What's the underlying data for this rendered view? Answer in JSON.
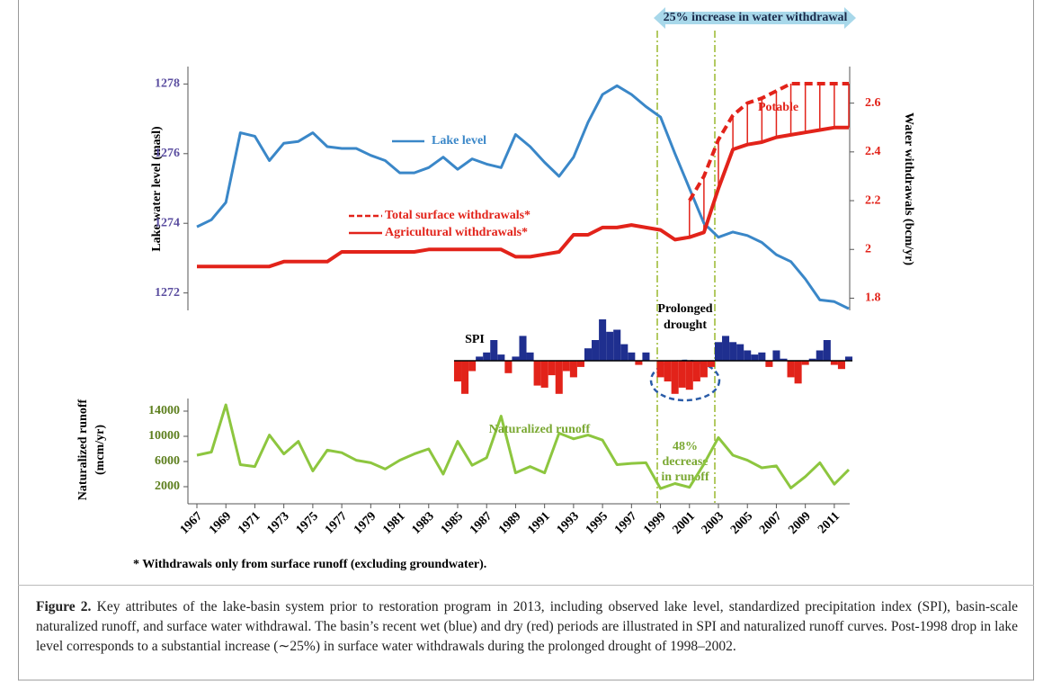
{
  "chart_data": [
    {
      "type": "line",
      "x": [
        1967,
        1968,
        1969,
        1970,
        1971,
        1972,
        1973,
        1974,
        1975,
        1976,
        1977,
        1978,
        1979,
        1980,
        1981,
        1982,
        1983,
        1984,
        1985,
        1986,
        1987,
        1988,
        1989,
        1990,
        1991,
        1992,
        1993,
        1994,
        1995,
        1996,
        1997,
        1998,
        1999,
        2000,
        2001,
        2002,
        2003,
        2004,
        2005,
        2006,
        2007,
        2008,
        2009,
        2010,
        2011,
        2012
      ],
      "xlim": [
        1967,
        2012
      ],
      "ylabel": "Lake water level (masl)",
      "y2label": "Water withdrawals (bcm/yr)",
      "ylim": [
        1271.5,
        1278.5
      ],
      "yticks": [
        1272,
        1274,
        1276,
        1278
      ],
      "ytick_color": "#5b4ea0",
      "y2lim": [
        1.75,
        2.75
      ],
      "y2ticks": [
        1.8,
        2,
        2.2,
        2.4,
        2.6
      ],
      "y2tick_color": "#e2231a",
      "series": [
        {
          "name": "Lake level",
          "color": "#3a87c8",
          "style": "solid",
          "axis": "y",
          "values": [
            1273.9,
            1274.1,
            1274.6,
            1276.6,
            1276.5,
            1275.8,
            1276.3,
            1276.35,
            1276.6,
            1276.2,
            1276.15,
            1276.15,
            1275.95,
            1275.8,
            1275.45,
            1275.45,
            1275.6,
            1275.9,
            1275.55,
            1275.85,
            1275.7,
            1275.6,
            1276.55,
            1276.2,
            1275.75,
            1275.35,
            1275.9,
            1276.9,
            1277.7,
            1277.95,
            1277.7,
            1277.35,
            1277.05,
            1276.0,
            1275.0,
            1274.0,
            1273.6,
            1273.75,
            1273.65,
            1273.45,
            1273.1,
            1272.9,
            1272.4,
            1271.8,
            1271.75,
            1271.55
          ]
        },
        {
          "name": "Total surface withdrawals*",
          "color": "#e2231a",
          "style": "dashed",
          "axis": "y2",
          "values": [
            null,
            null,
            null,
            null,
            null,
            null,
            null,
            null,
            null,
            null,
            null,
            null,
            null,
            null,
            null,
            null,
            null,
            null,
            null,
            null,
            null,
            null,
            null,
            null,
            null,
            null,
            null,
            null,
            null,
            null,
            null,
            null,
            null,
            null,
            2.2,
            2.3,
            2.45,
            2.55,
            2.6,
            2.62,
            2.65,
            2.68,
            2.68,
            2.68,
            2.68,
            2.68
          ]
        },
        {
          "name": "Agricultural withdrawals*",
          "color": "#e2231a",
          "style": "solid",
          "axis": "y2",
          "values": [
            1.93,
            1.93,
            1.93,
            1.93,
            1.93,
            1.93,
            1.95,
            1.95,
            1.95,
            1.95,
            1.99,
            1.99,
            1.99,
            1.99,
            1.99,
            1.99,
            2.0,
            2.0,
            2.0,
            2.0,
            2.0,
            2.0,
            1.97,
            1.97,
            1.98,
            1.99,
            2.06,
            2.06,
            2.09,
            2.09,
            2.1,
            2.09,
            2.08,
            2.04,
            2.05,
            2.07,
            2.25,
            2.41,
            2.43,
            2.44,
            2.46,
            2.47,
            2.48,
            2.49,
            2.5,
            2.5
          ]
        }
      ],
      "annotations": [
        "Potable",
        "25% increase in water withdrawal"
      ]
    },
    {
      "type": "area",
      "name": "SPI",
      "xlim": [
        1967,
        2012
      ],
      "ylim": [
        -2,
        2
      ],
      "positive_color": "#1f2f8f",
      "negative_color": "#e2231a",
      "x": [
        1985,
        1985.5,
        1986,
        1986.5,
        1987,
        1987.5,
        1988,
        1988.5,
        1989,
        1989.5,
        1990,
        1990.5,
        1991,
        1991.5,
        1992,
        1992.5,
        1993,
        1993.5,
        1994,
        1994.5,
        1995,
        1995.5,
        1996,
        1996.5,
        1997,
        1997.5,
        1998,
        1998.5,
        1999,
        1999.5,
        2000,
        2000.5,
        2001,
        2001.5,
        2002,
        2002.5,
        2003,
        2003.5,
        2004,
        2004.5,
        2005,
        2005.5,
        2006,
        2006.5,
        2007,
        2007.5,
        2008,
        2008.5,
        2009,
        2009.5,
        2010,
        2010.5,
        2011,
        2011.5,
        2012
      ],
      "values": [
        -1.0,
        -1.6,
        -0.5,
        0.2,
        0.4,
        1.0,
        0.3,
        -0.6,
        0.2,
        1.2,
        0.4,
        -1.2,
        -1.3,
        -0.7,
        -1.6,
        -0.5,
        -0.8,
        -0.3,
        0.6,
        1.0,
        2.0,
        1.4,
        1.5,
        0.8,
        0.4,
        -0.2,
        0.4,
        0.0,
        -0.8,
        -1.0,
        -1.6,
        -1.3,
        -1.4,
        -1.0,
        -0.8,
        -0.3,
        0.9,
        1.2,
        0.9,
        0.8,
        0.5,
        0.3,
        0.4,
        -0.3,
        0.5,
        0.1,
        -0.8,
        -1.1,
        -0.2,
        0.1,
        0.5,
        1.0,
        -0.2,
        -0.4,
        0.2
      ],
      "annotation": [
        "Prolonged",
        "drought"
      ]
    },
    {
      "type": "line",
      "x": [
        1967,
        1968,
        1969,
        1970,
        1971,
        1972,
        1973,
        1974,
        1975,
        1976,
        1977,
        1978,
        1979,
        1980,
        1981,
        1982,
        1983,
        1984,
        1985,
        1986,
        1987,
        1988,
        1989,
        1990,
        1991,
        1992,
        1993,
        1994,
        1995,
        1996,
        1997,
        1998,
        1999,
        2000,
        2001,
        2002,
        2003,
        2004,
        2005,
        2006,
        2007,
        2008,
        2009,
        2010,
        2011,
        2012
      ],
      "xlim": [
        1967,
        2012
      ],
      "xticks": [
        1967,
        1969,
        1971,
        1973,
        1975,
        1977,
        1979,
        1981,
        1983,
        1985,
        1987,
        1989,
        1991,
        1993,
        1995,
        1997,
        1999,
        2001,
        2003,
        2005,
        2007,
        2009,
        2011
      ],
      "ylabel": [
        "Naturalized runoff",
        "(mcm/yr)"
      ],
      "ylim": [
        0,
        16000
      ],
      "yticks": [
        2000,
        6000,
        10000,
        14000
      ],
      "ytick_color": "#5d7f1e",
      "series": [
        {
          "name": "Naturalized runoff",
          "color": "#8dc63f",
          "style": "solid",
          "values": [
            7000,
            7500,
            15000,
            5500,
            5200,
            10200,
            7200,
            9200,
            4500,
            7800,
            7400,
            6200,
            5800,
            4800,
            6200,
            7200,
            8000,
            4000,
            9200,
            5400,
            6600,
            13200,
            4200,
            5200,
            4200,
            10500,
            9600,
            10200,
            9400,
            5500,
            5700,
            5800,
            1700,
            2500,
            1900,
            5600,
            9800,
            7000,
            6200,
            5000,
            5300,
            1800,
            3600,
            5800,
            2400,
            4700
          ]
        }
      ],
      "annotation": [
        "48%",
        "decrease",
        "in runoff"
      ]
    }
  ],
  "footnote": "* Withdrawals only from surface runoff (excluding groundwater).",
  "caption": {
    "label": "Figure 2.",
    "text": "Key attributes of the lake-basin system prior to restoration program in 2013, including observed lake level, standardized precipitation index (SPI), basin-scale naturalized runoff, and surface water withdrawal. The basin’s recent wet (blue) and dry (red) periods are illustrated in SPI and naturalized runoff curves. Post-1998 drop in lake level corresponds to a substantial increase (∼25%) in surface water withdrawals during the prolonged drought of 1998–2002."
  }
}
